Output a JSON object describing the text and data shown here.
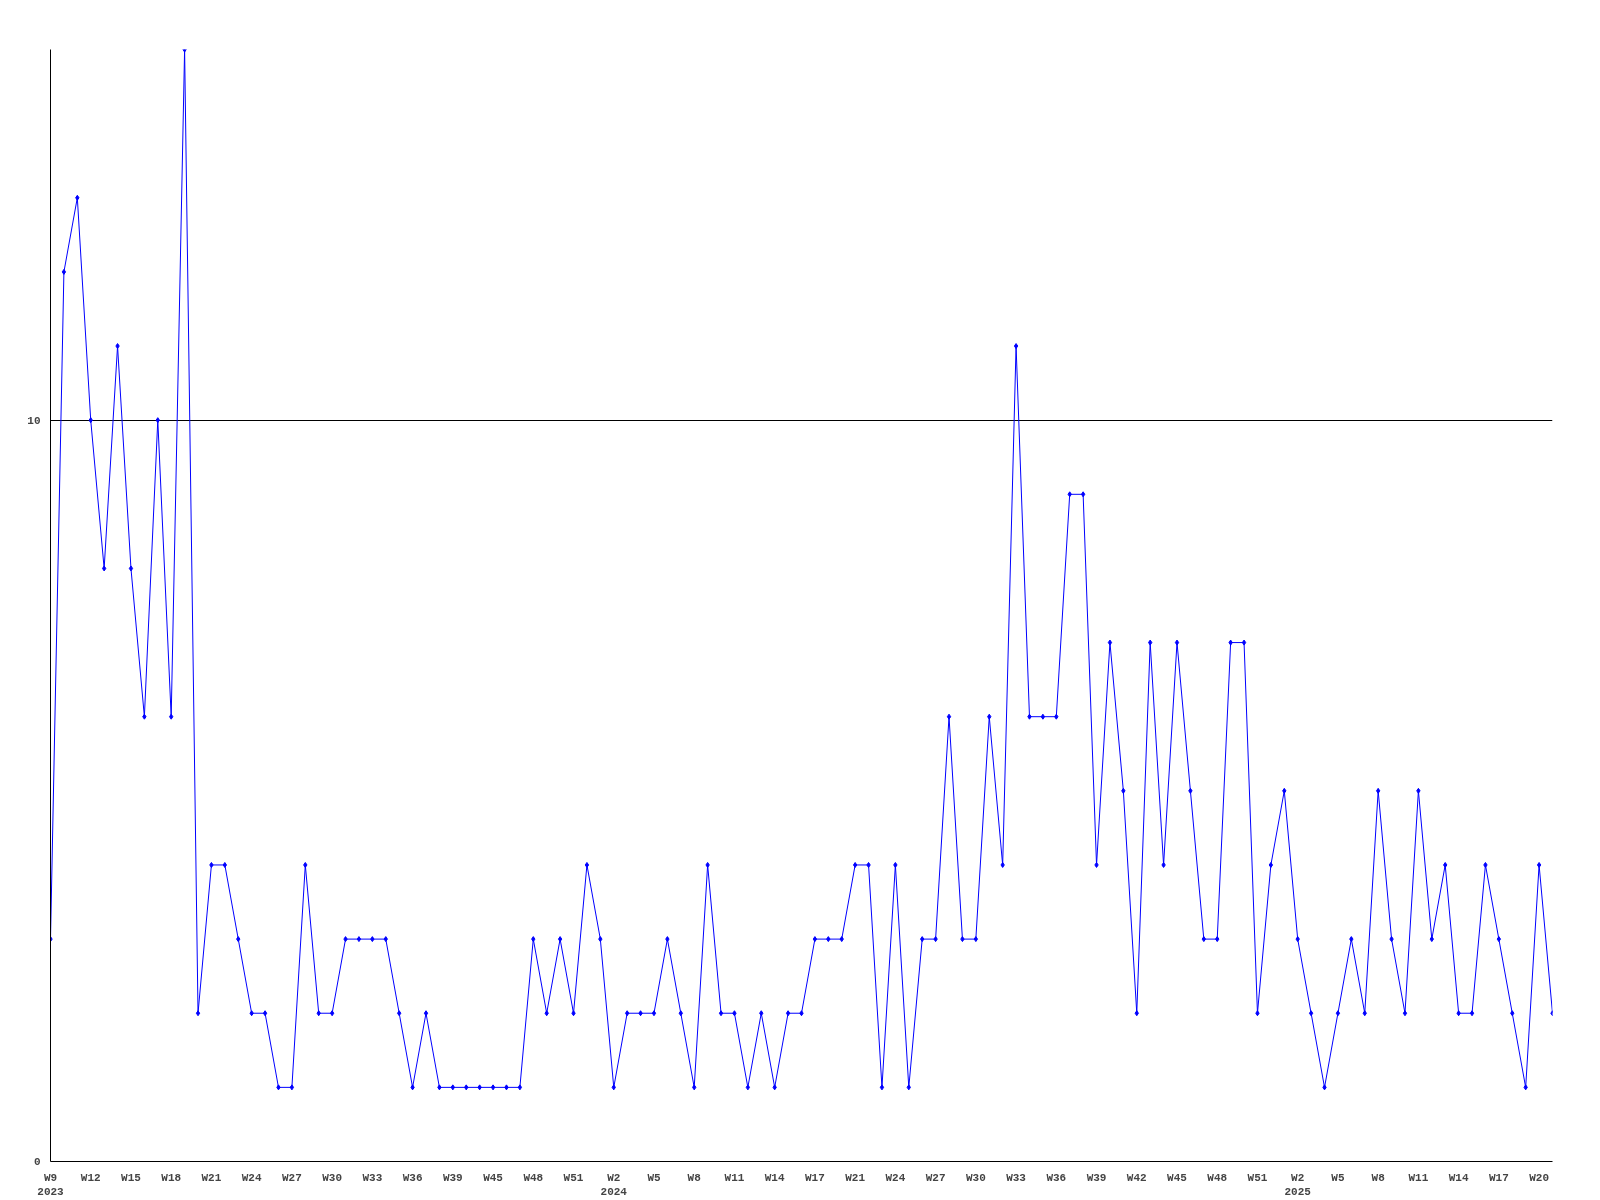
{
  "chart_data": {
    "type": "line",
    "categories": [
      "W9\n2023",
      null,
      null,
      "W12",
      null,
      null,
      "W15",
      null,
      null,
      "W18",
      null,
      null,
      "W21",
      null,
      null,
      "W24",
      null,
      null,
      "W27",
      null,
      null,
      "W30",
      null,
      null,
      "W33",
      null,
      null,
      "W36",
      null,
      null,
      "W39",
      null,
      null,
      "W45",
      null,
      null,
      "W48",
      null,
      null,
      "W51",
      null,
      null,
      "W2\n2024",
      null,
      null,
      "W5",
      null,
      null,
      "W8",
      null,
      null,
      "W11",
      null,
      null,
      "W14",
      null,
      null,
      "W17",
      null,
      null,
      "W21",
      null,
      null,
      "W24",
      null,
      null,
      "W27",
      null,
      null,
      "W30",
      null,
      null,
      "W33",
      null,
      null,
      "W36",
      null,
      null,
      "W39",
      null,
      null,
      "W42",
      null,
      null,
      "W45",
      null,
      null,
      "W48",
      null,
      null,
      "W51",
      null,
      null,
      "W2\n2025",
      null,
      null,
      "W5",
      null,
      null,
      "W8",
      null,
      null,
      "W11",
      null,
      null,
      "W14",
      null,
      null,
      "W17",
      null,
      null,
      "W20",
      null
    ],
    "series": [
      {
        "color": "#0000ff",
        "values": [
          3,
          12,
          13,
          10,
          8,
          11,
          8,
          6,
          10,
          6,
          15,
          2,
          4,
          4,
          3,
          2,
          2,
          1,
          1,
          4,
          2,
          2,
          3,
          3,
          3,
          3,
          2,
          1,
          2,
          1,
          1,
          1,
          1,
          1,
          1,
          1,
          3,
          2,
          3,
          2,
          4,
          3,
          1,
          2,
          2,
          2,
          3,
          2,
          1,
          4,
          2,
          2,
          1,
          2,
          1,
          2,
          2,
          3,
          3,
          3,
          4,
          4,
          1,
          4,
          1,
          3,
          3,
          6,
          3,
          3,
          6,
          4,
          11,
          6,
          6,
          6,
          9,
          9,
          4,
          7,
          5,
          2,
          7,
          4,
          7,
          5,
          3,
          3,
          7,
          7,
          2,
          4,
          5,
          3,
          2,
          1,
          2,
          3,
          2,
          5,
          3,
          2,
          5,
          3,
          4,
          2,
          2,
          4,
          3,
          2,
          1,
          4,
          2
        ]
      }
    ],
    "ylim": [
      0,
      15
    ],
    "yticks": [
      0,
      10
    ],
    "grid": "y",
    "marker": "diamond",
    "line_style": "solid"
  }
}
